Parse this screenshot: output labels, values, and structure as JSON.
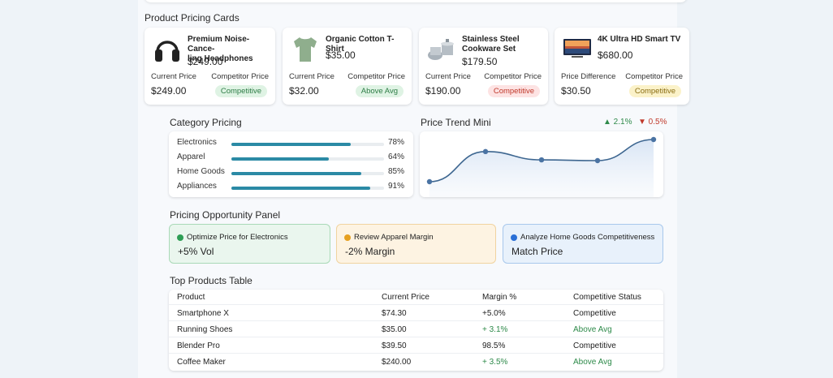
{
  "sections": {
    "cards_title": "Product Pricing Cards",
    "category_title": "Category Pricing",
    "trend_title": "Price Trend Mini",
    "opportunity_title": "Pricing Opportunity Panel",
    "table_title": "Top Products Table"
  },
  "cards": [
    {
      "name": "Premium Noise-Canceling Headphones",
      "name_line1": "Premium Noise-Cance-",
      "name_line2": "ling Headphones",
      "price": "$249.00",
      "label_left": "Current Price",
      "label_right": "Competitor Price",
      "value": "$249.00",
      "badge": "Competitive",
      "badge_color": "green",
      "icon": "headphones-icon"
    },
    {
      "name": "Organic Cotton T-Shirt",
      "name_line1": "Organic Cotton T-Shirt",
      "name_line2": "",
      "price": "$35.00",
      "label_left": "Current Price",
      "label_right": "Competitor Price",
      "value": "$32.00",
      "badge": "Above Avg",
      "badge_color": "green",
      "icon": "tshirt-icon"
    },
    {
      "name": "Stainless Steel Cookware Set",
      "name_line1": "Stainless Steel",
      "name_line2": "Cookware Set",
      "price": "$179.50",
      "label_left": "Current Price",
      "label_right": "Competitor Price",
      "value": "$190.00",
      "badge": "Competitive",
      "badge_color": "red",
      "icon": "cookware-icon"
    },
    {
      "name": "4K Ultra HD Smart TV",
      "name_line1": "4K Ultra HD Smart TV",
      "name_line2": "",
      "price": "$680.00",
      "label_left": "Price Difference",
      "label_right": "Competitor Price",
      "value": "$30.50",
      "badge": "Competitive",
      "badge_color": "yellow",
      "icon": "tv-icon"
    }
  ],
  "category_pricing": [
    {
      "label": "Electronics",
      "value": 78,
      "pct_text": "78%"
    },
    {
      "label": "Apparel",
      "value": 64,
      "pct_text": "64%"
    },
    {
      "label": "Home Goods",
      "value": 85,
      "pct_text": "85%"
    },
    {
      "label": "Appliances",
      "value": 91,
      "pct_text": "91%"
    }
  ],
  "trend": {
    "up_text": "▲ 2.1%",
    "down_text": "▼ 0.5%",
    "up_color": "#2e8a4a",
    "down_color": "#c0392b",
    "points": [
      2,
      42,
      31,
      30,
      58
    ]
  },
  "opportunities": [
    {
      "title": "Optimize Price for Electronics",
      "value": "+5% Vol",
      "dot_color": "#2e9e55",
      "bg": "#eaf6ee",
      "border": "#a9d9b7"
    },
    {
      "title": "Review Apparel Margin",
      "value": "-2% Margin",
      "dot_color": "#e6a020",
      "bg": "#fdf3e2",
      "border": "#f0d3a0"
    },
    {
      "title": "Analyze Home Goods Competitiveness",
      "value": "Match Price",
      "dot_color": "#2a6fd6",
      "bg": "#e8f1fb",
      "border": "#a8c8ec"
    }
  ],
  "table": {
    "headers": [
      "Product",
      "Current Price",
      "Margin %",
      "Competitive Status"
    ],
    "rows": [
      {
        "product": "Smartphone X",
        "price": "$74.30",
        "margin": "+5.0%",
        "status": "Competitive",
        "green": false
      },
      {
        "product": "Running Shoes",
        "price": "$35.00",
        "margin": "+ 3.1%",
        "status": "Above Avg",
        "green": true
      },
      {
        "product": "Blender Pro",
        "price": "$39.50",
        "margin": "98.5%",
        "status": "Competitive",
        "green": false
      },
      {
        "product": "Coffee Maker",
        "price": "$240.00",
        "margin": "+ 3.5%",
        "status": "Above Avg",
        "green": true
      }
    ]
  }
}
